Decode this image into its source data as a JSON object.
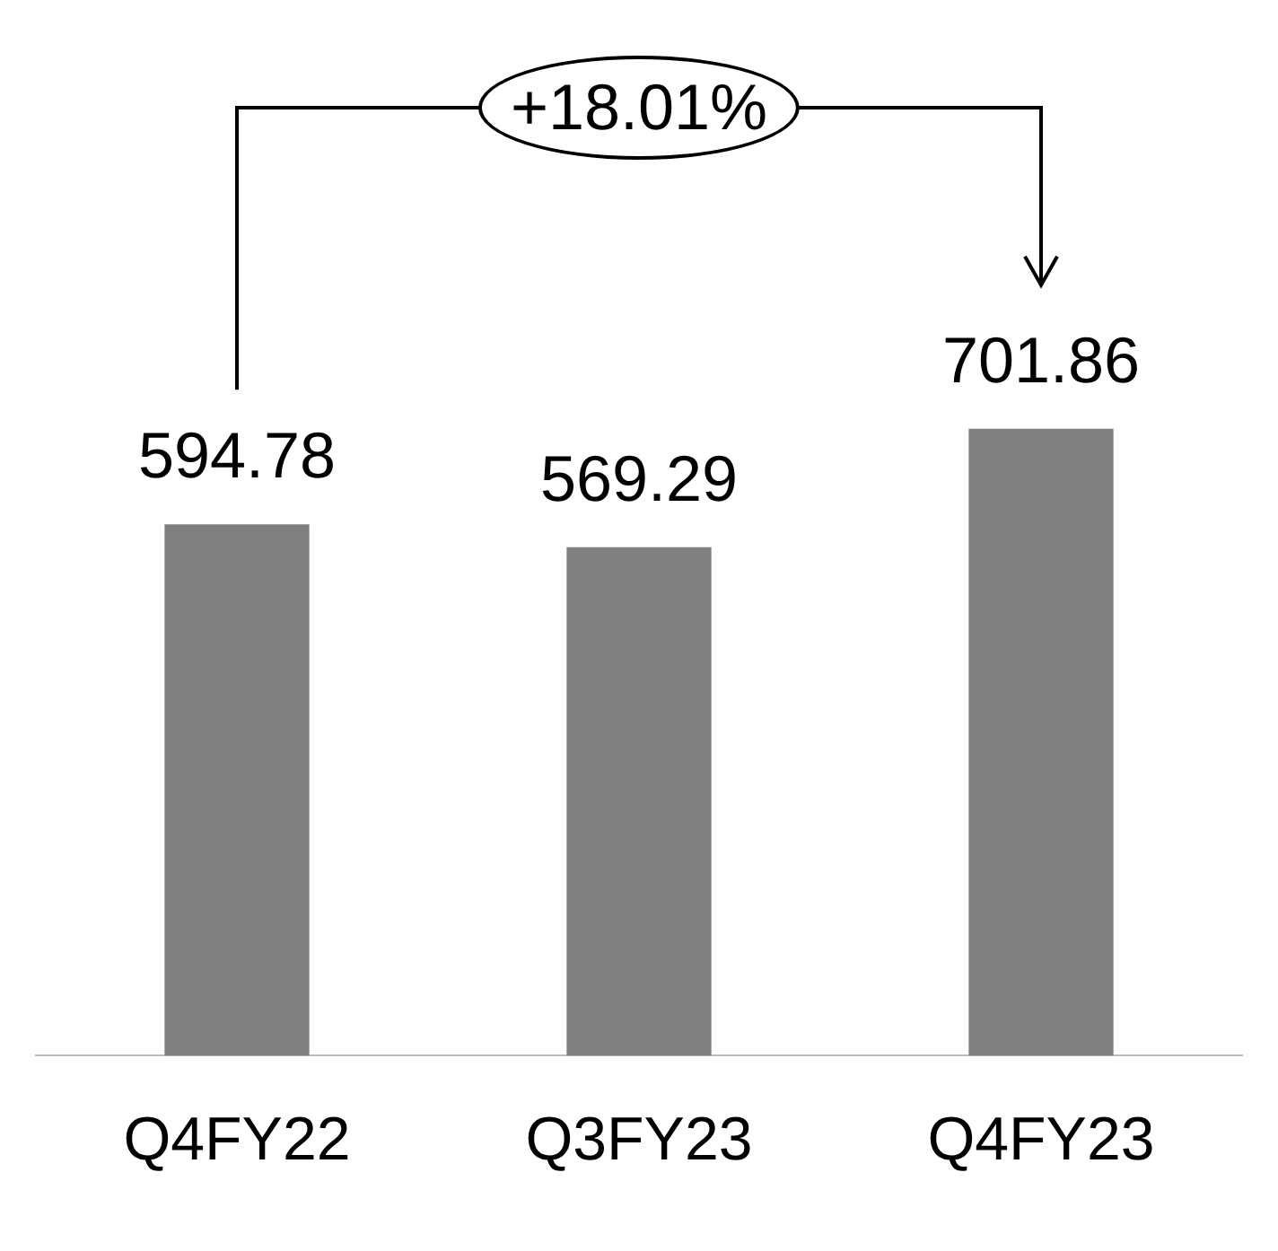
{
  "chart_data": {
    "type": "bar",
    "categories": [
      "Q4FY22",
      "Q3FY23",
      "Q4FY23"
    ],
    "values": [
      594.78,
      569.29,
      701.86
    ],
    "color": "#7f7f7f",
    "data_labels": true,
    "tick_labels": "x",
    "grid": false,
    "legend": false,
    "annotations": [
      "+18.01%"
    ]
  }
}
